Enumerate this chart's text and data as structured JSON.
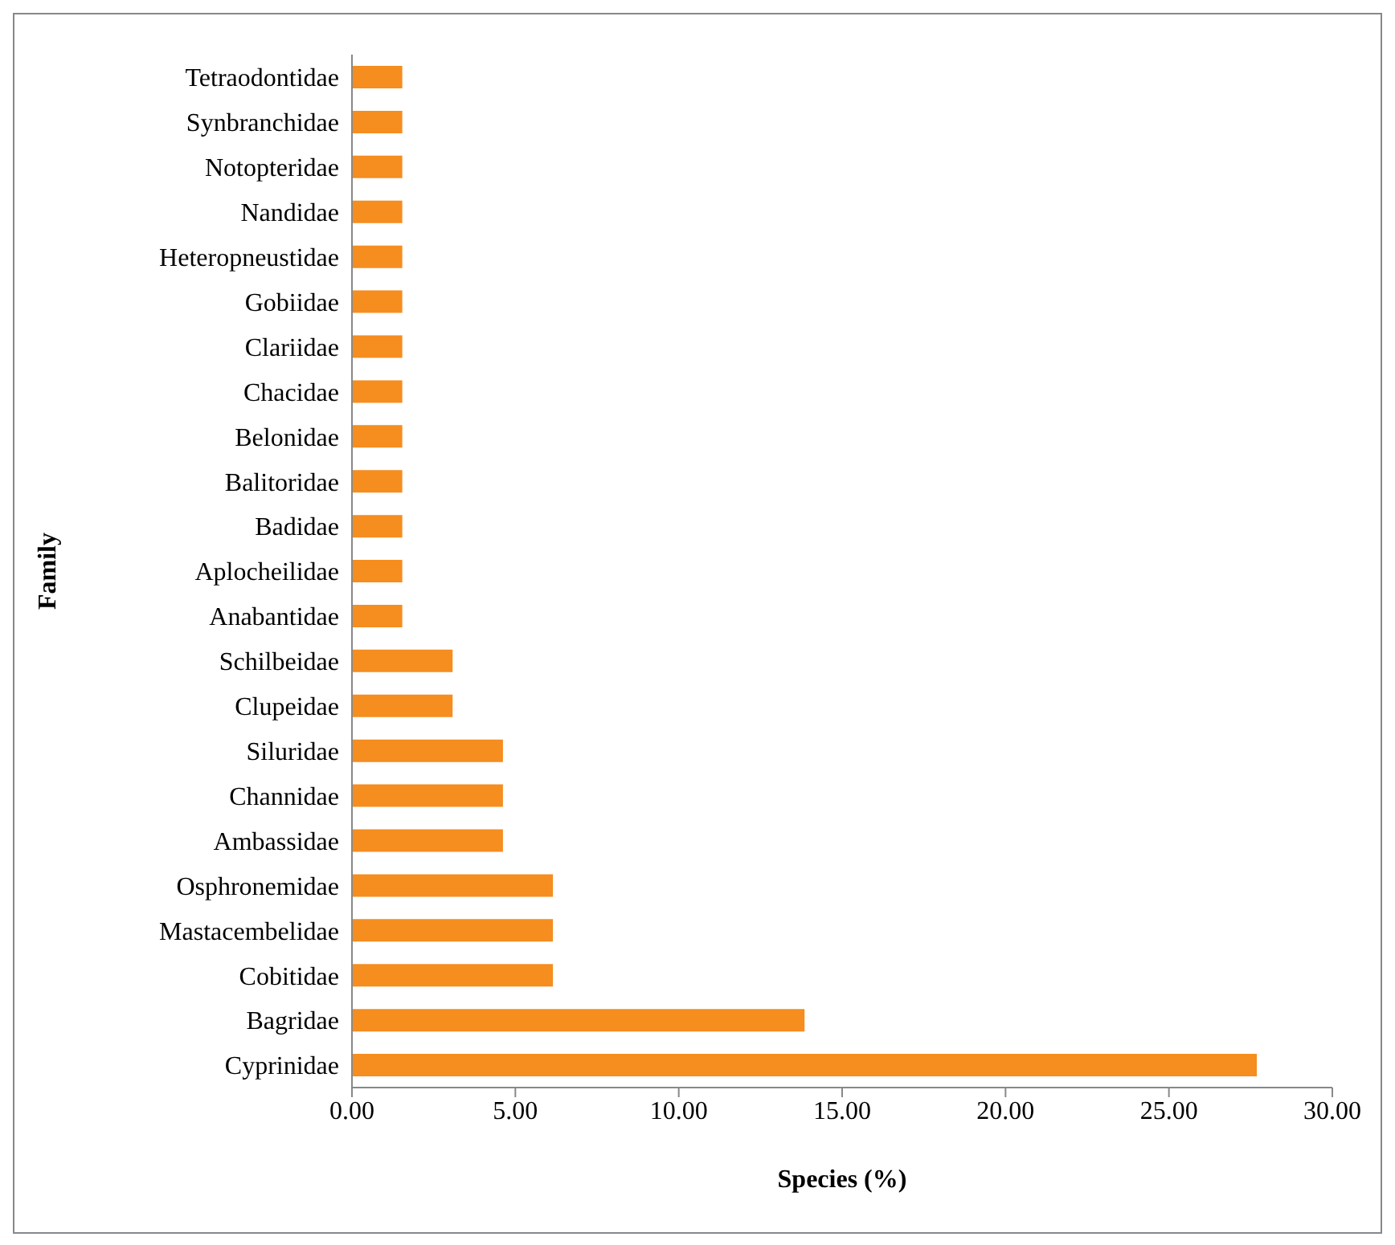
{
  "chart_data": {
    "type": "bar",
    "orientation": "horizontal",
    "xlabel": "Species (%)",
    "ylabel": "Family",
    "categories": [
      "Tetraodontidae",
      "Synbranchidae",
      "Notopteridae",
      "Nandidae",
      "Heteropneustidae",
      "Gobiidae",
      "Clariidae",
      "Chacidae",
      "Belonidae",
      "Balitoridae",
      "Badidae",
      "Aplocheilidae",
      "Anabantidae",
      "Schilbeidae",
      "Clupeidae",
      "Siluridae",
      "Channidae",
      "Ambassidae",
      "Osphronemidae",
      "Mastacembelidae",
      "Cobitidae",
      "Bagridae",
      "Cyprinidae"
    ],
    "values": [
      1.54,
      1.54,
      1.54,
      1.54,
      1.54,
      1.54,
      1.54,
      1.54,
      1.54,
      1.54,
      1.54,
      1.54,
      1.54,
      3.08,
      3.08,
      4.62,
      4.62,
      4.62,
      6.15,
      6.15,
      6.15,
      13.85,
      27.69
    ],
    "color": "#f58d1f",
    "xlim": [
      0,
      30
    ],
    "xticks": [
      {
        "value": 0,
        "label": "0.00"
      },
      {
        "value": 5,
        "label": "5.00"
      },
      {
        "value": 10,
        "label": "10.00"
      },
      {
        "value": 15,
        "label": "15.00"
      },
      {
        "value": 20,
        "label": "20.00"
      },
      {
        "value": 25,
        "label": "25.00"
      },
      {
        "value": 30,
        "label": "30.00"
      }
    ],
    "grid": false,
    "legend": false
  }
}
